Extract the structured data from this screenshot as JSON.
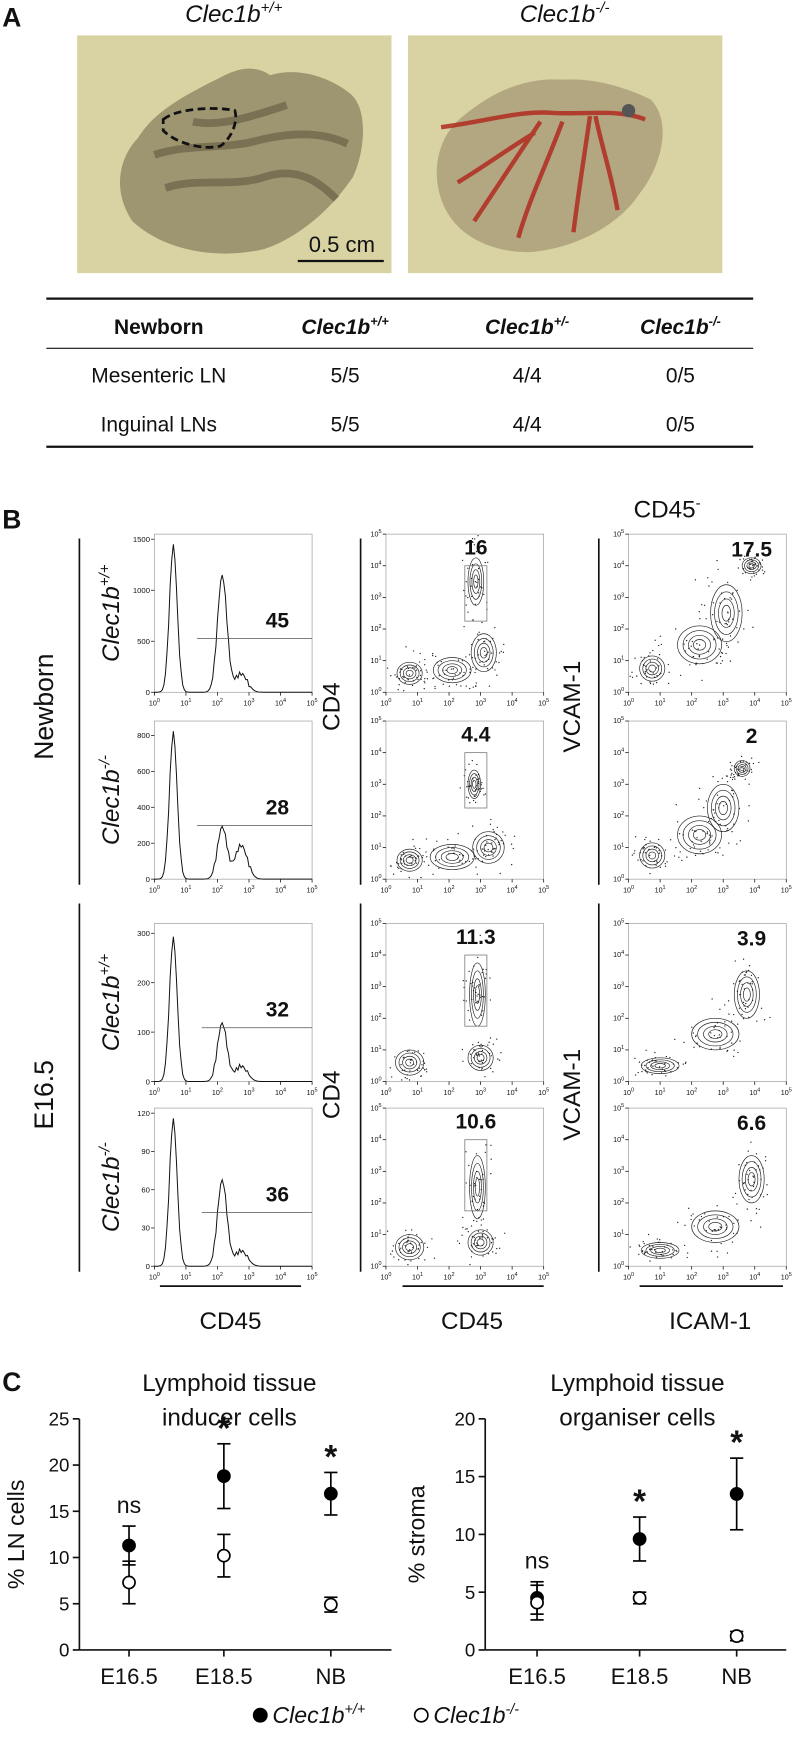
{
  "panel_a": {
    "label": "A",
    "photo_titles": [
      {
        "text": "Clec1b",
        "sup": "+/+"
      },
      {
        "text": "Clec1b",
        "sup": "-/-"
      }
    ],
    "scale_bar": "0.5 cm",
    "table": {
      "header": [
        {
          "text": "Newborn"
        },
        {
          "text": "Clec1b",
          "sup": "+/+"
        },
        {
          "text": "Clec1b",
          "sup": "+/-"
        },
        {
          "text": "Clec1b",
          "sup": "-/-"
        }
      ],
      "rows": [
        [
          "Mesenteric LN",
          "5/5",
          "4/4",
          "0/5"
        ],
        [
          "Inguinal LNs",
          "5/5",
          "4/4",
          "0/5"
        ]
      ]
    }
  },
  "panel_b": {
    "label": "B",
    "gate_header": {
      "text": "CD45",
      "sup": "-"
    },
    "log_base": "10",
    "log_exponents": [
      0,
      1,
      2,
      3,
      4,
      5
    ],
    "y_labels": [
      "CD4",
      "VCAM-1"
    ],
    "x_labels": [
      "CD45",
      "CD45",
      "ICAM-1"
    ],
    "ages": [
      {
        "name": "Newborn",
        "rows": [
          {
            "genotype": {
              "text": "Clec1b",
              "sup": "+/+"
            },
            "histogram": {
              "ylim": [
                0,
                1550
              ],
              "yticks": [
                0,
                500,
                1000,
                1500
              ],
              "gate_percent": 45
            },
            "cd4_percent": 16,
            "vcam_percent": 17.5
          },
          {
            "genotype": {
              "text": "Clec1b",
              "sup": "-/-"
            },
            "histogram": {
              "ylim": [
                0,
                880
              ],
              "yticks": [
                0,
                200,
                400,
                600,
                800
              ],
              "gate_percent": 28
            },
            "cd4_percent": 4.4,
            "vcam_percent": 2
          }
        ]
      },
      {
        "name": "E16.5",
        "rows": [
          {
            "genotype": {
              "text": "Clec1b",
              "sup": "+/+"
            },
            "histogram": {
              "ylim": [
                0,
                320
              ],
              "yticks": [
                0,
                100,
                200,
                300
              ],
              "gate_percent": 32
            },
            "cd4_percent": 11.3,
            "vcam_percent": 3.9
          },
          {
            "genotype": {
              "text": "Clec1b",
              "sup": "-/-"
            },
            "histogram": {
              "ylim": [
                0,
                124
              ],
              "yticks": [
                0,
                30,
                60,
                90,
                120
              ],
              "gate_percent": 36
            },
            "cd4_percent": 10.6,
            "vcam_percent": 6.6
          }
        ]
      }
    ]
  },
  "panel_c": {
    "label": "C"
  },
  "chart_data": [
    {
      "type": "scatter",
      "title_lines": [
        "Lymphoid tissue",
        "inducer cells"
      ],
      "y_label": "% LN cells",
      "categories": [
        "E16.5",
        "E18.5",
        "NB"
      ],
      "ylim": [
        0,
        25
      ],
      "yticks": [
        0,
        5,
        10,
        15,
        20,
        25
      ],
      "significance": [
        "ns",
        "*",
        "*"
      ],
      "series": [
        {
          "name": "Clec1b",
          "name_sup": "+/+",
          "color": "#000000",
          "fill": "#000000",
          "values": [
            11.3,
            18.8,
            16.9
          ],
          "errors": [
            2.1,
            3.5,
            2.3
          ]
        },
        {
          "name": "Clec1b",
          "name_sup": "-/-",
          "color": "#000000",
          "fill": "#ffffff",
          "values": [
            7.3,
            10.2,
            4.9
          ],
          "errors": [
            2.3,
            2.3,
            0.8
          ]
        }
      ]
    },
    {
      "type": "scatter",
      "title_lines": [
        "Lymphoid tissue",
        "organiser cells"
      ],
      "y_label": "% stroma",
      "categories": [
        "E16.5",
        "E18.5",
        "NB"
      ],
      "ylim": [
        0,
        20
      ],
      "yticks": [
        0,
        5,
        10,
        15,
        20
      ],
      "significance": [
        "ns",
        "*",
        "*"
      ],
      "series": [
        {
          "color": "#000000",
          "fill": "#000000",
          "values": [
            4.5,
            9.6,
            13.5
          ],
          "errors": [
            1.4,
            1.9,
            3.1
          ]
        },
        {
          "color": "#000000",
          "fill": "#ffffff",
          "values": [
            4.1,
            4.5,
            1.2
          ],
          "errors": [
            1.5,
            0.5,
            0.4
          ]
        }
      ]
    }
  ]
}
